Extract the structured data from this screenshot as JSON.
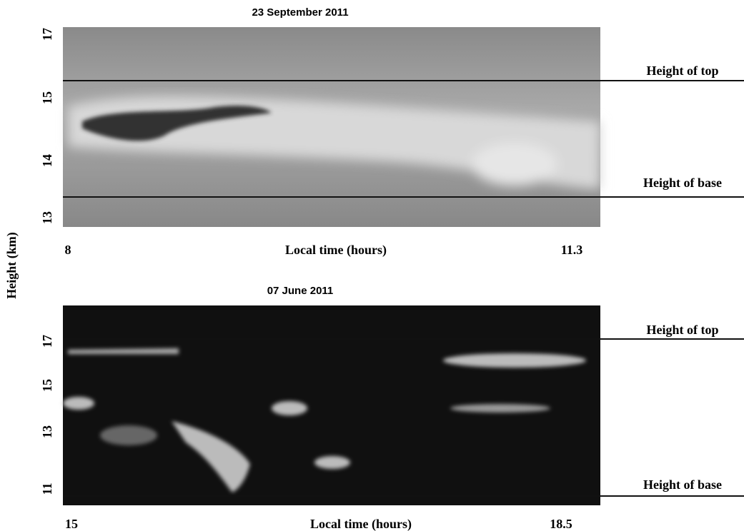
{
  "y_axis_label": "Height (km)",
  "panels": [
    {
      "title": "23 September 2011",
      "y_ticks": [
        "17",
        "15",
        "14",
        "13"
      ],
      "x_start": "8",
      "x_label": "Local time (hours)",
      "x_end": "11.3",
      "top_label": "Height of top",
      "base_label": "Height of base"
    },
    {
      "title": "07 June 2011",
      "y_ticks": [
        "17",
        "15",
        "13",
        "11"
      ],
      "x_start": "15",
      "x_label": "Local time (hours)",
      "x_end": "18.5",
      "top_label": "Height of top",
      "base_label": "Height of base"
    }
  ]
}
